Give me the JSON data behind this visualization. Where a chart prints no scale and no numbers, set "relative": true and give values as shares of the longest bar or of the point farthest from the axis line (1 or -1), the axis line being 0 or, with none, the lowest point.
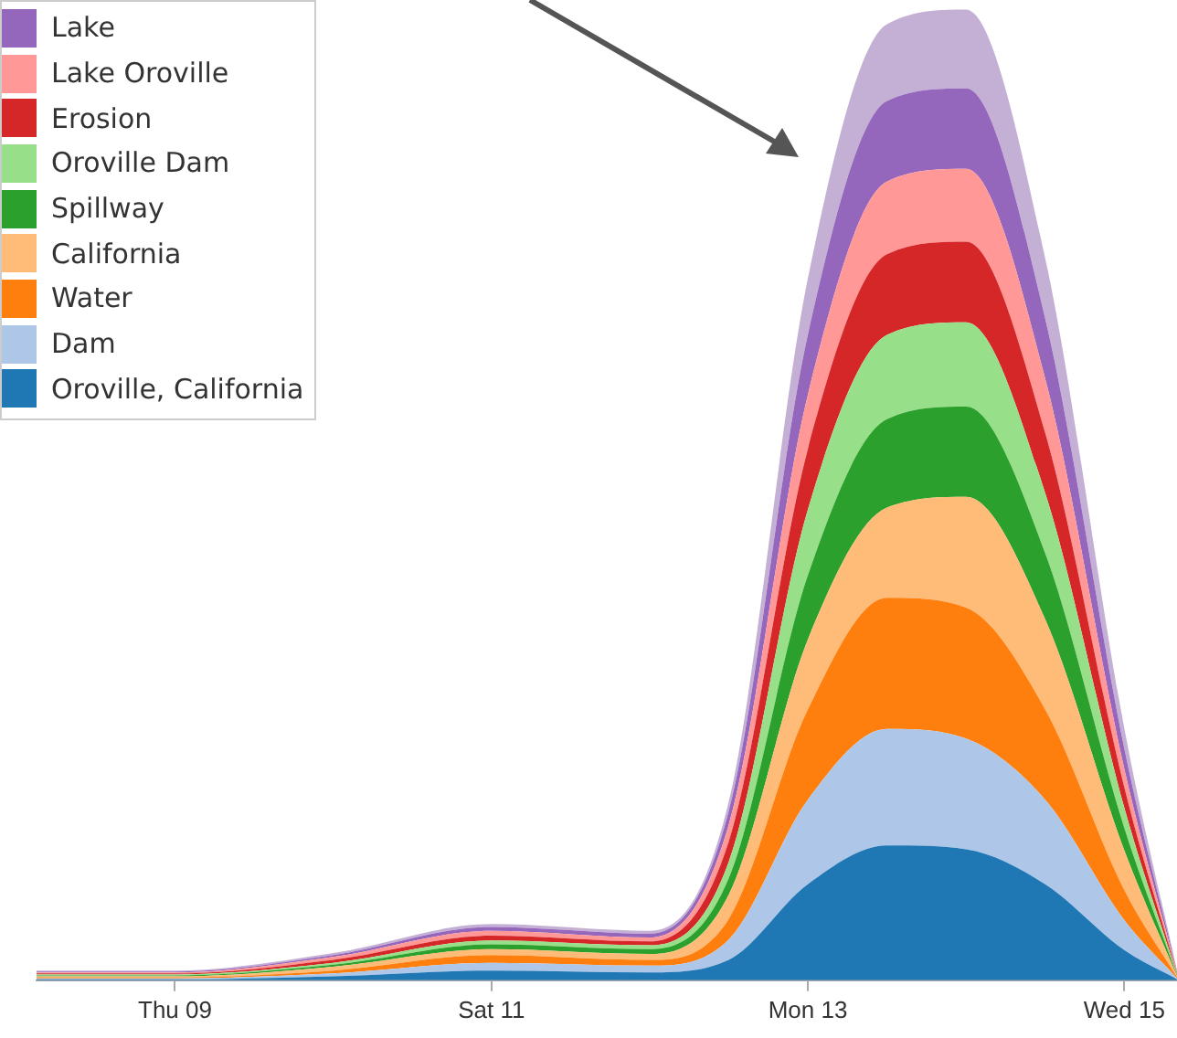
{
  "chart_data": {
    "type": "area",
    "stacked": true,
    "relative": true,
    "legend": "top left",
    "x": [
      "--02-08T03:00",
      "--02-09T00:00",
      "--02-10T00:00",
      "--02-11T00:00",
      "--02-12T00:00",
      "--02-12T12:00",
      "--02-13T00:00",
      "--02-13T12:00",
      "--02-14T00:00",
      "--02-14T12:00",
      "--02-15T00:00",
      "--02-15T08:00"
    ],
    "xlim": [
      "--02-08T03:00",
      "--02-15T08:00"
    ],
    "xticks": [
      {
        "value": "--02-09T00:00",
        "label": "Thu 09"
      },
      {
        "value": "--02-11T00:00",
        "label": "Sat 11"
      },
      {
        "value": "--02-13T00:00",
        "label": "Mon 13"
      },
      {
        "value": "--02-15T00:00",
        "label": "Wed 15"
      }
    ],
    "series": [
      {
        "name": "Oroville, California",
        "color": "#1f77b4",
        "values": [
          0.001,
          0.001,
          0.004,
          0.01,
          0.008,
          0.021,
          0.099,
          0.139,
          0.135,
          0.099,
          0.031,
          0.001
        ]
      },
      {
        "name": "Dam",
        "color": "#aec7e8",
        "values": [
          0.001,
          0.001,
          0.003,
          0.008,
          0.007,
          0.021,
          0.087,
          0.12,
          0.114,
          0.087,
          0.031,
          0.001
        ]
      },
      {
        "name": "Water",
        "color": "#ff7f0e",
        "values": [
          0.001,
          0.001,
          0.003,
          0.008,
          0.006,
          0.021,
          0.093,
          0.135,
          0.135,
          0.093,
          0.031,
          0.001
        ]
      },
      {
        "name": "California",
        "color": "#ffbb78",
        "values": [
          0.001,
          0.001,
          0.004,
          0.006,
          0.006,
          0.025,
          0.072,
          0.093,
          0.114,
          0.093,
          0.041,
          0.001
        ]
      },
      {
        "name": "Spillway",
        "color": "#2ca02c",
        "values": [
          0.001,
          0.001,
          0.002,
          0.005,
          0.005,
          0.017,
          0.066,
          0.091,
          0.093,
          0.068,
          0.023,
          0.001
        ]
      },
      {
        "name": "Oroville Dam",
        "color": "#98df8a",
        "values": [
          0.001,
          0.001,
          0.002,
          0.004,
          0.004,
          0.017,
          0.068,
          0.087,
          0.087,
          0.062,
          0.021,
          0.001
        ]
      },
      {
        "name": "Erosion",
        "color": "#d62728",
        "values": [
          0.001,
          0.001,
          0.003,
          0.005,
          0.004,
          0.021,
          0.062,
          0.083,
          0.083,
          0.062,
          0.021,
          0.001
        ]
      },
      {
        "name": "Lake Oroville",
        "color": "#ff9896",
        "values": [
          0.001,
          0.001,
          0.003,
          0.005,
          0.004,
          0.017,
          0.056,
          0.075,
          0.075,
          0.056,
          0.019,
          0.001
        ]
      },
      {
        "name": "Lake",
        "color": "#9467bd",
        "values": [
          0.001,
          0.001,
          0.002,
          0.004,
          0.004,
          0.014,
          0.062,
          0.083,
          0.083,
          0.062,
          0.021,
          0.001
        ]
      },
      {
        "color": "#c5b0d5",
        "values": [
          0.001,
          0.001,
          0.002,
          0.003,
          0.003,
          0.01,
          0.058,
          0.079,
          0.081,
          0.062,
          0.021,
          0.001
        ]
      }
    ]
  }
}
